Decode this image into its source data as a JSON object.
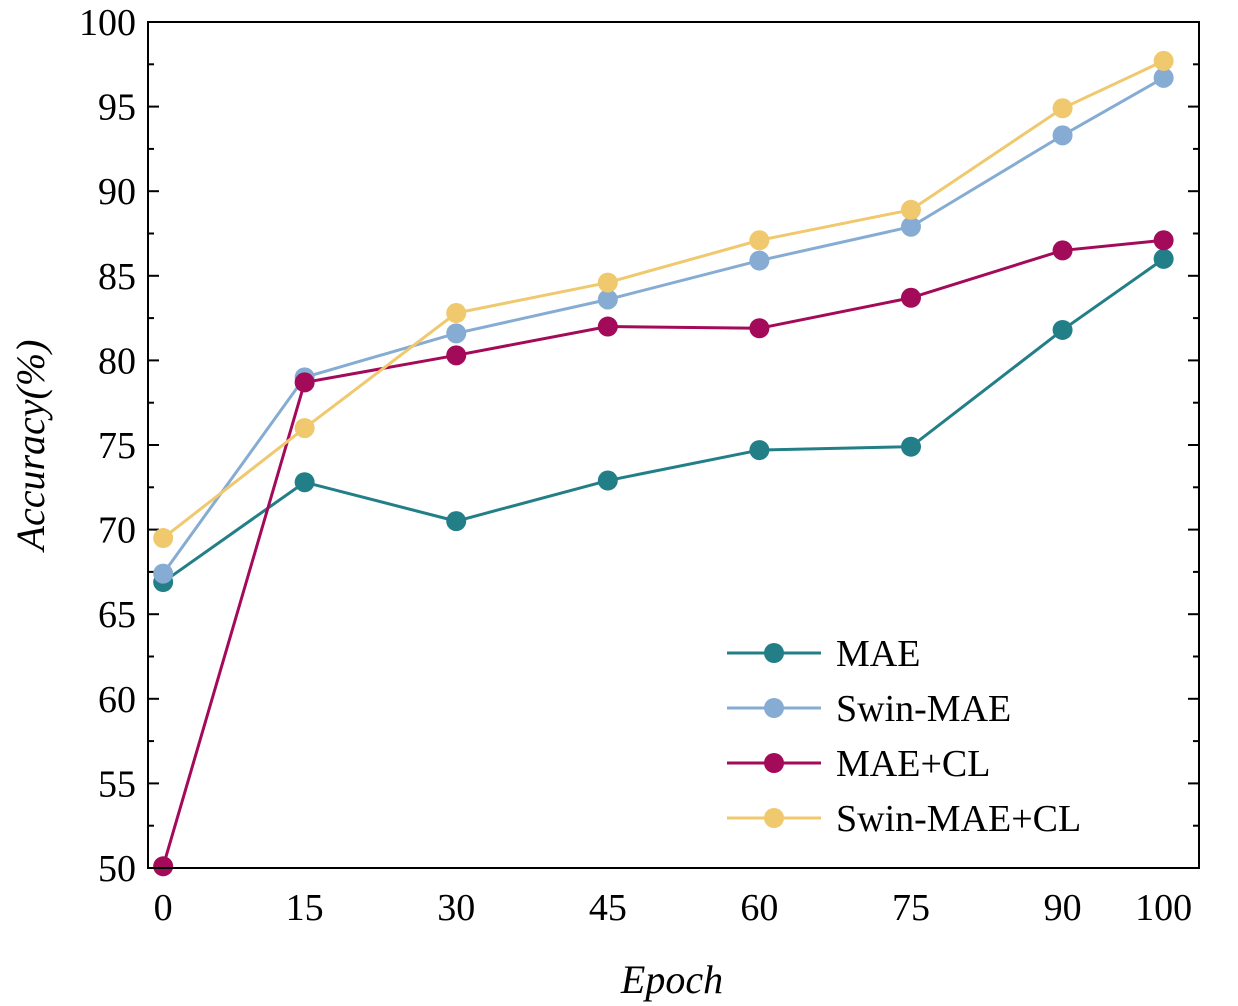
{
  "chart_data": {
    "type": "line",
    "title": "",
    "xlabel": "Epoch",
    "ylabel": "Accuracy(%)",
    "x": [
      1,
      15,
      30,
      45,
      60,
      75,
      90,
      100
    ],
    "x_tick_labels": [
      "0",
      "15",
      "30",
      "45",
      "60",
      "75",
      "90",
      "100"
    ],
    "ylim": [
      50,
      100
    ],
    "y_ticks": [
      50,
      55,
      60,
      65,
      70,
      75,
      80,
      85,
      90,
      95,
      100
    ],
    "grid": false,
    "legend_position": "bottom-right",
    "series": [
      {
        "name": "MAE",
        "color": "#237f87",
        "values": [
          66.9,
          72.8,
          70.5,
          72.9,
          74.7,
          74.9,
          81.8,
          86.0
        ]
      },
      {
        "name": "Swin-MAE",
        "color": "#86acd4",
        "values": [
          67.4,
          79.0,
          81.6,
          83.6,
          85.9,
          87.9,
          93.3,
          96.7
        ]
      },
      {
        "name": "MAE+CL",
        "color": "#a30a5a",
        "values": [
          50.1,
          78.7,
          80.3,
          82.0,
          81.9,
          83.7,
          86.5,
          87.1
        ]
      },
      {
        "name": "Swin-MAE+CL",
        "color": "#f0c86e",
        "values": [
          69.5,
          76.0,
          82.8,
          84.6,
          87.1,
          88.9,
          94.9,
          97.7
        ]
      }
    ]
  }
}
